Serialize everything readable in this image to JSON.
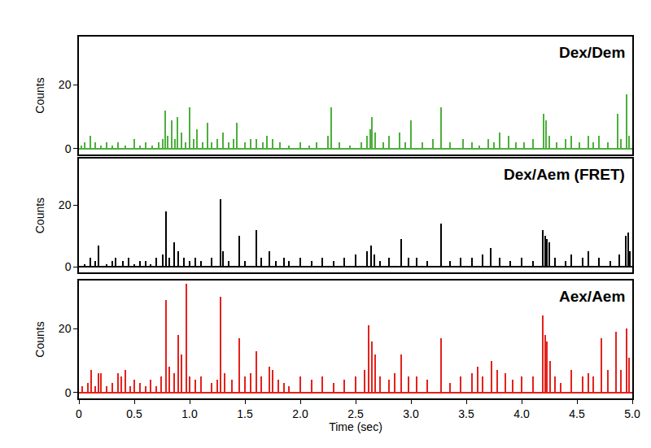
{
  "chart_data": {
    "type": "bar",
    "xlabel": "Time (sec)",
    "ylabel": "Counts",
    "xlim": [
      0,
      5
    ],
    "xticks": [
      0,
      0.5,
      {
        "value": 1,
        "label": "1.0"
      },
      1.5,
      {
        "value": 2,
        "label": "2.0"
      },
      2.5,
      {
        "value": 3,
        "label": "3.0"
      },
      3.5,
      {
        "value": 4,
        "label": "4.0"
      },
      4.5,
      {
        "value": 5,
        "label": "5.0"
      }
    ],
    "ylim": [
      -1.8,
      35
    ],
    "yticks": [
      0,
      20
    ],
    "series": [
      {
        "name": "Dex/Dem",
        "color": "#4daf3c",
        "x": [
          0.02,
          0.05,
          0.1,
          0.15,
          0.2,
          0.25,
          0.3,
          0.35,
          0.42,
          0.5,
          0.55,
          0.6,
          0.66,
          0.72,
          0.76,
          0.78,
          0.8,
          0.84,
          0.87,
          0.89,
          0.93,
          0.96,
          1.0,
          1.04,
          1.07,
          1.12,
          1.16,
          1.2,
          1.25,
          1.3,
          1.35,
          1.4,
          1.43,
          1.5,
          1.55,
          1.6,
          1.66,
          1.7,
          1.75,
          1.82,
          1.9,
          2.0,
          2.08,
          2.15,
          2.25,
          2.28,
          2.35,
          2.45,
          2.55,
          2.6,
          2.63,
          2.65,
          2.68,
          2.75,
          2.8,
          2.9,
          2.95,
          3.0,
          3.1,
          3.2,
          3.27,
          3.35,
          3.47,
          3.55,
          3.62,
          3.7,
          3.75,
          3.8,
          3.88,
          3.95,
          4.02,
          4.1,
          4.2,
          4.22,
          4.25,
          4.32,
          4.4,
          4.45,
          4.52,
          4.6,
          4.65,
          4.7,
          4.78,
          4.87,
          4.9,
          4.95,
          4.97
        ],
        "values": [
          1,
          2,
          4,
          2,
          1,
          2,
          1,
          2,
          1,
          3,
          1,
          2,
          1,
          2,
          3,
          12,
          4,
          9,
          3,
          10,
          5,
          2,
          13,
          3,
          6,
          2,
          8,
          2,
          3,
          5,
          2,
          3,
          8,
          2,
          3,
          3,
          2,
          4,
          3,
          2,
          1,
          2,
          1,
          2,
          4,
          13,
          2,
          1,
          2,
          4,
          6,
          10,
          5,
          2,
          4,
          5,
          2,
          9,
          2,
          3,
          13,
          2,
          3,
          2,
          1,
          3,
          2,
          5,
          4,
          2,
          2,
          3,
          11,
          9,
          4,
          2,
          3,
          4,
          2,
          4,
          2,
          4,
          2,
          11,
          3,
          17,
          4
        ]
      },
      {
        "name": "Dex/Aem (FRET)",
        "color": "#000000",
        "x": [
          0.05,
          0.1,
          0.15,
          0.18,
          0.25,
          0.3,
          0.33,
          0.4,
          0.45,
          0.5,
          0.55,
          0.6,
          0.65,
          0.7,
          0.76,
          0.79,
          0.82,
          0.86,
          0.9,
          0.95,
          1.0,
          1.05,
          1.1,
          1.2,
          1.28,
          1.3,
          1.35,
          1.45,
          1.5,
          1.6,
          1.65,
          1.72,
          1.78,
          1.85,
          1.9,
          2.0,
          2.1,
          2.2,
          2.3,
          2.4,
          2.5,
          2.6,
          2.64,
          2.67,
          2.72,
          2.8,
          2.91,
          2.98,
          3.05,
          3.15,
          3.27,
          3.35,
          3.45,
          3.55,
          3.65,
          3.72,
          3.8,
          3.9,
          4.0,
          4.1,
          4.19,
          4.21,
          4.23,
          4.25,
          4.3,
          4.4,
          4.45,
          4.55,
          4.6,
          4.7,
          4.8,
          4.88,
          4.94,
          4.96,
          4.98
        ],
        "values": [
          1,
          3,
          2,
          7,
          1,
          2,
          3,
          2,
          3,
          1,
          2,
          2,
          1,
          3,
          4,
          18,
          3,
          8,
          5,
          3,
          2,
          3,
          2,
          3,
          22,
          5,
          2,
          10,
          2,
          12,
          3,
          5,
          2,
          3,
          2,
          3,
          2,
          3,
          2,
          3,
          4,
          5,
          7,
          4,
          2,
          3,
          9,
          3,
          3,
          2,
          14,
          2,
          3,
          3,
          4,
          6,
          3,
          2,
          3,
          2,
          12,
          10,
          9,
          8,
          3,
          2,
          4,
          3,
          5,
          3,
          2,
          4,
          10,
          11,
          5
        ]
      },
      {
        "name": "Aex/Aem",
        "color": "#e4221c",
        "x": [
          0.03,
          0.08,
          0.11,
          0.15,
          0.18,
          0.2,
          0.25,
          0.3,
          0.35,
          0.38,
          0.42,
          0.46,
          0.5,
          0.55,
          0.6,
          0.65,
          0.7,
          0.74,
          0.79,
          0.82,
          0.86,
          0.9,
          0.93,
          0.97,
          1.0,
          1.05,
          1.1,
          1.2,
          1.25,
          1.28,
          1.32,
          1.38,
          1.45,
          1.5,
          1.55,
          1.6,
          1.65,
          1.72,
          1.75,
          1.8,
          1.85,
          1.9,
          2.0,
          2.1,
          2.2,
          2.3,
          2.4,
          2.5,
          2.58,
          2.62,
          2.65,
          2.68,
          2.72,
          2.8,
          2.85,
          2.91,
          2.98,
          3.05,
          3.15,
          3.27,
          3.35,
          3.45,
          3.55,
          3.6,
          3.65,
          3.73,
          3.78,
          3.85,
          3.92,
          4.0,
          4.1,
          4.19,
          4.21,
          4.23,
          4.26,
          4.3,
          4.35,
          4.45,
          4.55,
          4.6,
          4.65,
          4.72,
          4.78,
          4.85,
          4.9,
          4.95,
          4.97
        ],
        "values": [
          2,
          3,
          7,
          2,
          6,
          6,
          2,
          3,
          6,
          5,
          7,
          2,
          4,
          3,
          2,
          4,
          2,
          5,
          29,
          8,
          6,
          18,
          12,
          34,
          5,
          4,
          5,
          3,
          4,
          30,
          6,
          4,
          17,
          5,
          6,
          13,
          5,
          8,
          7,
          4,
          3,
          2,
          5,
          4,
          5,
          3,
          4,
          5,
          7,
          21,
          16,
          12,
          5,
          4,
          6,
          12,
          5,
          5,
          4,
          17,
          3,
          5,
          6,
          8,
          5,
          10,
          7,
          6,
          4,
          5,
          5,
          24,
          18,
          16,
          10,
          5,
          3,
          7,
          5,
          6,
          5,
          17,
          7,
          19,
          7,
          20,
          11
        ]
      }
    ]
  }
}
